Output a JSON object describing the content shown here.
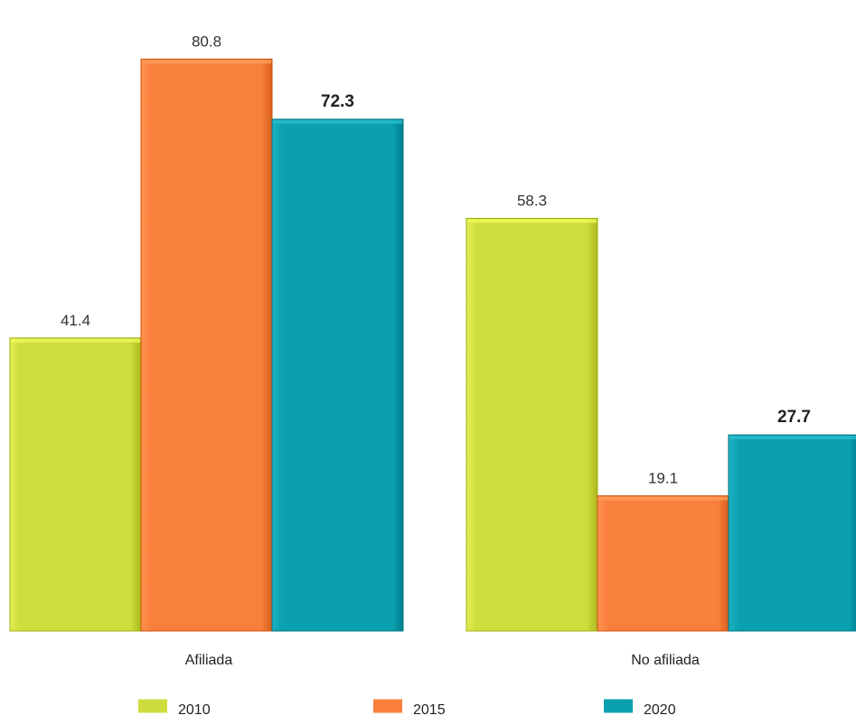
{
  "chart_data": {
    "type": "bar",
    "categories": [
      "Afiliada",
      "No afiliada"
    ],
    "series": [
      {
        "name": "2010",
        "values": [
          41.4,
          58.3
        ],
        "color": "#cfdc3e"
      },
      {
        "name": "2015",
        "values": [
          80.8,
          19.1
        ],
        "color": "#f9803c"
      },
      {
        "name": "2020",
        "values": [
          72.3,
          27.7
        ],
        "color": "#0aa0af"
      }
    ],
    "value_labels": [
      [
        "41.4",
        "80.8",
        "72.3"
      ],
      [
        "58.3",
        "19.1",
        "27.7"
      ]
    ],
    "emphasized_series": "2020",
    "ylim": [
      0,
      80.8
    ],
    "grid": false,
    "legend": "bottom"
  }
}
